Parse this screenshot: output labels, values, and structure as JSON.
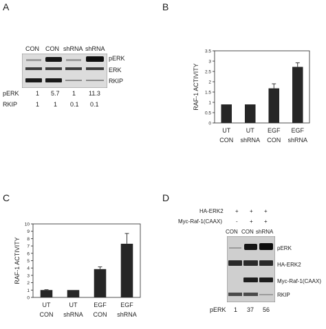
{
  "panels": {
    "A": {
      "letter": "A",
      "lanes": [
        "CON",
        "CON",
        "shRNA",
        "shRNA"
      ],
      "bands": [
        "pERK",
        "ERK",
        "RKIP"
      ],
      "rows": [
        {
          "name": "pERK",
          "values": [
            "1",
            "5.7",
            "1",
            "11.3"
          ]
        },
        {
          "name": "RKIP",
          "values": [
            "1",
            "1",
            "0.1",
            "0.1"
          ]
        }
      ]
    },
    "B": {
      "letter": "B"
    },
    "C": {
      "letter": "C"
    },
    "D": {
      "letter": "D",
      "treatments": [
        {
          "name": "HA-ERK2",
          "marks": [
            "+",
            "+",
            "+"
          ]
        },
        {
          "name": "Myc-Raf-1(CAAX)",
          "marks": [
            "-",
            "+",
            "+"
          ]
        }
      ],
      "lanes": [
        "CON",
        "CON",
        "shRNA"
      ],
      "bands": [
        "pERK",
        "HA-ERK2",
        "Myc-Raf-1(CAAX)",
        "RKIP"
      ],
      "row": {
        "name": "pERK",
        "values": [
          "1",
          "37",
          "56"
        ]
      }
    }
  },
  "chart_data": [
    {
      "panel": "B",
      "type": "bar",
      "ylabel": "RAF-1 ACTIVITY",
      "categories": [
        [
          "UT",
          "CON"
        ],
        [
          "UT",
          "shRNA"
        ],
        [
          "EGF",
          "CON"
        ],
        [
          "EGF",
          "shRNA"
        ]
      ],
      "values": [
        0.9,
        0.9,
        1.68,
        2.72
      ],
      "errors": [
        0,
        0,
        0.22,
        0.2
      ],
      "yticks": [
        "0",
        "0.5",
        "1",
        "1.5",
        "2",
        "2.5",
        "3",
        "3.5"
      ],
      "ylim": [
        0,
        3.5
      ],
      "grid": false
    },
    {
      "panel": "C",
      "type": "bar",
      "ylabel": "RAF-1 ACTIVITY",
      "categories": [
        [
          "UT",
          "CON"
        ],
        [
          "UT",
          "shRNA"
        ],
        [
          "EGF",
          "CON"
        ],
        [
          "EGF",
          "shRNA"
        ]
      ],
      "values": [
        1.0,
        1.0,
        3.85,
        7.3
      ],
      "errors": [
        0.05,
        0,
        0.3,
        1.4
      ],
      "yticks": [
        "0",
        "1",
        "2",
        "3",
        "4",
        "5",
        "6",
        "7",
        "8",
        "9",
        "10"
      ],
      "ylim": [
        0,
        10
      ],
      "grid": false
    }
  ]
}
